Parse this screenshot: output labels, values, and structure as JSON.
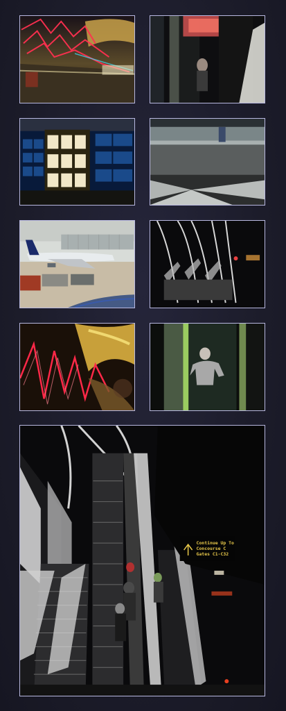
{
  "colors": {
    "background": "#1c1c2a",
    "thumbnail_border": "#b8b8e0",
    "sign_text": "#e8c84a"
  },
  "photos": [
    {
      "id": "terminal-neon-ceiling"
    },
    {
      "id": "tall-window-figure"
    },
    {
      "id": "lit-window-grid"
    },
    {
      "id": "checkered-floor-walkway"
    },
    {
      "id": "airplane-on-tarmac"
    },
    {
      "id": "escalators-light-streaks"
    },
    {
      "id": "neon-ceiling-blur"
    },
    {
      "id": "person-photographing"
    },
    {
      "id": "escalators-large"
    }
  ],
  "featured": {
    "sign_lines": [
      "Continue Up To",
      "Concourse C",
      "Gates C1-C32"
    ]
  }
}
